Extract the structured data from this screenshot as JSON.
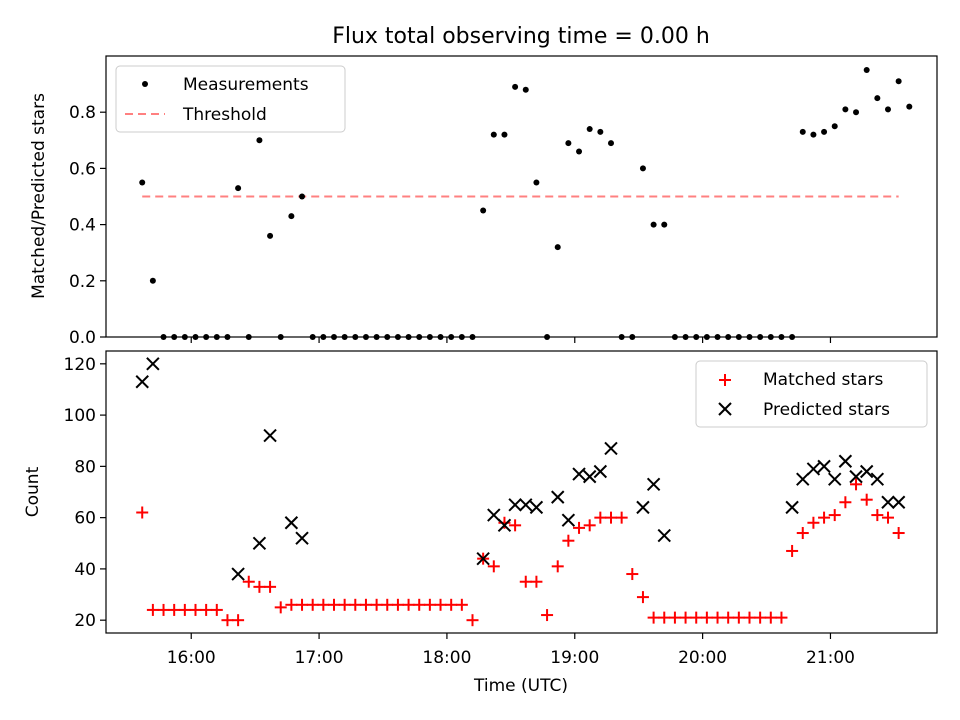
{
  "title": "Flux total observing time = 0.00 h",
  "colors": {
    "measurements": "#000000",
    "threshold": "#ff8080",
    "matched": "#ff0000",
    "predicted": "#000000"
  },
  "chart_data": [
    {
      "type": "scatter",
      "ylabel": "Matched/Predicted stars",
      "ylim": [
        0,
        1.0
      ],
      "yticks": [
        "0.0",
        "0.2",
        "0.4",
        "0.6",
        "0.8"
      ],
      "legend": {
        "position": "top-left",
        "entries": [
          "Measurements",
          "Threshold"
        ]
      },
      "threshold": {
        "name": "Threshold",
        "y": 0.5,
        "x_start": "15:37",
        "x_end": "21:32"
      },
      "series": [
        {
          "name": "Measurements",
          "points": [
            [
              "15:37",
              0.55
            ],
            [
              "15:42",
              0.2
            ],
            [
              "15:47",
              0.0
            ],
            [
              "15:52",
              0.0
            ],
            [
              "15:57",
              0.0
            ],
            [
              "16:02",
              0.0
            ],
            [
              "16:07",
              0.0
            ],
            [
              "16:12",
              0.0
            ],
            [
              "16:17",
              0.0
            ],
            [
              "16:22",
              0.53
            ],
            [
              "16:27",
              0.0
            ],
            [
              "16:32",
              0.7
            ],
            [
              "16:37",
              0.36
            ],
            [
              "16:42",
              0.0
            ],
            [
              "16:47",
              0.43
            ],
            [
              "16:52",
              0.5
            ],
            [
              "16:57",
              0.0
            ],
            [
              "17:02",
              0.0
            ],
            [
              "17:07",
              0.0
            ],
            [
              "17:12",
              0.0
            ],
            [
              "17:17",
              0.0
            ],
            [
              "17:22",
              0.0
            ],
            [
              "17:27",
              0.0
            ],
            [
              "17:32",
              0.0
            ],
            [
              "17:37",
              0.0
            ],
            [
              "17:42",
              0.0
            ],
            [
              "17:47",
              0.0
            ],
            [
              "17:52",
              0.0
            ],
            [
              "17:57",
              0.0
            ],
            [
              "18:02",
              0.0
            ],
            [
              "18:07",
              0.0
            ],
            [
              "18:12",
              0.0
            ],
            [
              "18:17",
              0.45
            ],
            [
              "18:22",
              0.72
            ],
            [
              "18:27",
              0.72
            ],
            [
              "18:32",
              0.89
            ],
            [
              "18:37",
              0.88
            ],
            [
              "18:42",
              0.55
            ],
            [
              "18:47",
              0.0
            ],
            [
              "18:52",
              0.32
            ],
            [
              "18:57",
              0.69
            ],
            [
              "19:02",
              0.66
            ],
            [
              "19:07",
              0.74
            ],
            [
              "19:12",
              0.73
            ],
            [
              "19:17",
              0.69
            ],
            [
              "19:22",
              0.0
            ],
            [
              "19:27",
              0.0
            ],
            [
              "19:32",
              0.6
            ],
            [
              "19:37",
              0.4
            ],
            [
              "19:42",
              0.4
            ],
            [
              "19:47",
              0.0
            ],
            [
              "19:52",
              0.0
            ],
            [
              "19:57",
              0.0
            ],
            [
              "20:02",
              0.0
            ],
            [
              "20:07",
              0.0
            ],
            [
              "20:12",
              0.0
            ],
            [
              "20:17",
              0.0
            ],
            [
              "20:22",
              0.0
            ],
            [
              "20:27",
              0.0
            ],
            [
              "20:32",
              0.0
            ],
            [
              "20:37",
              0.0
            ],
            [
              "20:42",
              0.0
            ],
            [
              "20:47",
              0.73
            ],
            [
              "20:52",
              0.72
            ],
            [
              "20:57",
              0.73
            ],
            [
              "21:02",
              0.75
            ],
            [
              "21:07",
              0.81
            ],
            [
              "21:12",
              0.8
            ],
            [
              "21:17",
              0.95
            ],
            [
              "21:22",
              0.85
            ],
            [
              "21:27",
              0.81
            ],
            [
              "21:32",
              0.91
            ],
            [
              "21:37",
              0.82
            ]
          ]
        }
      ]
    },
    {
      "type": "scatter",
      "ylabel": "Count",
      "xlabel": "Time (UTC)",
      "ylim": [
        15,
        125
      ],
      "yticks": [
        "20",
        "40",
        "60",
        "80",
        "100",
        "120"
      ],
      "xticks": [
        "16:00",
        "17:00",
        "18:00",
        "19:00",
        "20:00",
        "21:00"
      ],
      "xlim": [
        "15:20",
        "21:50"
      ],
      "legend": {
        "position": "top-right",
        "entries": [
          "Matched stars",
          "Predicted stars"
        ]
      },
      "series": [
        {
          "name": "Matched stars",
          "points": [
            [
              "15:37",
              62
            ],
            [
              "15:42",
              24
            ],
            [
              "15:47",
              24
            ],
            [
              "15:52",
              24
            ],
            [
              "15:57",
              24
            ],
            [
              "16:02",
              24
            ],
            [
              "16:07",
              24
            ],
            [
              "16:12",
              24
            ],
            [
              "16:17",
              20
            ],
            [
              "16:22",
              20
            ],
            [
              "16:27",
              35
            ],
            [
              "16:32",
              33
            ],
            [
              "16:37",
              33
            ],
            [
              "16:42",
              25
            ],
            [
              "16:47",
              26
            ],
            [
              "16:52",
              26
            ],
            [
              "16:57",
              26
            ],
            [
              "17:02",
              26
            ],
            [
              "17:07",
              26
            ],
            [
              "17:12",
              26
            ],
            [
              "17:17",
              26
            ],
            [
              "17:22",
              26
            ],
            [
              "17:27",
              26
            ],
            [
              "17:32",
              26
            ],
            [
              "17:37",
              26
            ],
            [
              "17:42",
              26
            ],
            [
              "17:47",
              26
            ],
            [
              "17:52",
              26
            ],
            [
              "17:57",
              26
            ],
            [
              "18:02",
              26
            ],
            [
              "18:07",
              26
            ],
            [
              "18:12",
              20
            ],
            [
              "18:17",
              44
            ],
            [
              "18:22",
              41
            ],
            [
              "18:27",
              58
            ],
            [
              "18:32",
              57
            ],
            [
              "18:37",
              35
            ],
            [
              "18:42",
              35
            ],
            [
              "18:47",
              22
            ],
            [
              "18:52",
              41
            ],
            [
              "18:57",
              51
            ],
            [
              "19:02",
              56
            ],
            [
              "19:07",
              57
            ],
            [
              "19:12",
              60
            ],
            [
              "19:17",
              60
            ],
            [
              "19:22",
              60
            ],
            [
              "19:27",
              38
            ],
            [
              "19:32",
              29
            ],
            [
              "19:37",
              21
            ],
            [
              "19:42",
              21
            ],
            [
              "19:47",
              21
            ],
            [
              "19:52",
              21
            ],
            [
              "19:57",
              21
            ],
            [
              "20:02",
              21
            ],
            [
              "20:07",
              21
            ],
            [
              "20:12",
              21
            ],
            [
              "20:17",
              21
            ],
            [
              "20:22",
              21
            ],
            [
              "20:27",
              21
            ],
            [
              "20:32",
              21
            ],
            [
              "20:37",
              21
            ],
            [
              "20:42",
              47
            ],
            [
              "20:47",
              54
            ],
            [
              "20:52",
              58
            ],
            [
              "20:57",
              60
            ],
            [
              "21:02",
              61
            ],
            [
              "21:07",
              66
            ],
            [
              "21:12",
              73
            ],
            [
              "21:17",
              67
            ],
            [
              "21:22",
              61
            ],
            [
              "21:27",
              60
            ],
            [
              "21:32",
              54
            ]
          ]
        },
        {
          "name": "Predicted stars",
          "points": [
            [
              "15:37",
              113
            ],
            [
              "15:42",
              120
            ],
            [
              "16:22",
              38
            ],
            [
              "16:32",
              50
            ],
            [
              "16:37",
              92
            ],
            [
              "16:47",
              58
            ],
            [
              "16:52",
              52
            ],
            [
              "18:17",
              44
            ],
            [
              "18:22",
              61
            ],
            [
              "18:27",
              57
            ],
            [
              "18:32",
              65
            ],
            [
              "18:37",
              65
            ],
            [
              "18:42",
              64
            ],
            [
              "18:52",
              68
            ],
            [
              "18:57",
              59
            ],
            [
              "19:02",
              77
            ],
            [
              "19:07",
              76
            ],
            [
              "19:12",
              78
            ],
            [
              "19:17",
              87
            ],
            [
              "19:32",
              64
            ],
            [
              "19:37",
              73
            ],
            [
              "19:42",
              53
            ],
            [
              "20:42",
              64
            ],
            [
              "20:47",
              75
            ],
            [
              "20:52",
              79
            ],
            [
              "20:57",
              80
            ],
            [
              "21:02",
              75
            ],
            [
              "21:07",
              82
            ],
            [
              "21:12",
              76
            ],
            [
              "21:17",
              78
            ],
            [
              "21:22",
              75
            ],
            [
              "21:27",
              66
            ],
            [
              "21:32",
              66
            ]
          ]
        }
      ]
    }
  ]
}
